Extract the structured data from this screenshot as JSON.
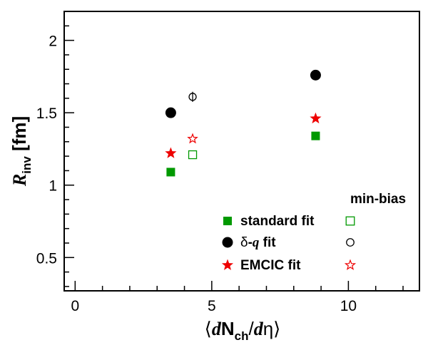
{
  "chart_data": {
    "type": "scatter",
    "title": "",
    "xlabel": {
      "open": "⟨",
      "d1": "d",
      "N": "N",
      "sub": "ch",
      "slash": "/",
      "d2": "d",
      "eta": "η",
      "close": "⟩"
    },
    "ylabel": {
      "R": "R",
      "sub": "inv",
      "unit": " [fm]"
    },
    "xlim": [
      -0.4,
      12.6
    ],
    "ylim": [
      0.27,
      2.2
    ],
    "x_ticks": [
      {
        "v": 0,
        "label": "0"
      },
      {
        "v": 5,
        "label": "5"
      },
      {
        "v": 10,
        "label": "10"
      }
    ],
    "y_ticks": [
      {
        "v": 0.5,
        "label": "0.5"
      },
      {
        "v": 1,
        "label": "1"
      },
      {
        "v": 1.5,
        "label": "1.5"
      },
      {
        "v": 2,
        "label": "2"
      }
    ],
    "grid": false,
    "legend_position": "bottom-right",
    "legend_header": "min-bias",
    "series": [
      {
        "name": "standard fit",
        "symbol": "square",
        "color": "#009900",
        "filled": true,
        "points": [
          {
            "x": 3.5,
            "y": 1.09
          },
          {
            "x": 8.8,
            "y": 1.34
          }
        ]
      },
      {
        "name": "δ-q fit",
        "symbol": "circle",
        "color": "#000000",
        "filled": true,
        "points": [
          {
            "x": 3.5,
            "y": 1.5
          },
          {
            "x": 8.8,
            "y": 1.76
          }
        ]
      },
      {
        "name": "EMCIC fit",
        "symbol": "star",
        "color": "#ee0000",
        "filled": true,
        "points": [
          {
            "x": 3.5,
            "y": 1.22
          },
          {
            "x": 8.8,
            "y": 1.46
          }
        ]
      },
      {
        "name": "standard fit (min-bias)",
        "symbol": "square",
        "color": "#009900",
        "filled": false,
        "points": [
          {
            "x": 4.3,
            "y": 1.21
          }
        ]
      },
      {
        "name": "δ-q fit (min-bias)",
        "symbol": "circle",
        "color": "#000000",
        "filled": false,
        "points": [
          {
            "x": 4.3,
            "y": 1.61,
            "err": 0.02
          }
        ]
      },
      {
        "name": "EMCIC fit (min-bias)",
        "symbol": "star",
        "color": "#ee0000",
        "filled": false,
        "points": [
          {
            "x": 4.3,
            "y": 1.32
          }
        ]
      }
    ],
    "legend": [
      {
        "label": "standard fit",
        "symbol": "square",
        "color": "#009900"
      },
      {
        "label_delta": "δ",
        "label_dash": "-",
        "label_q": "q",
        "label_rest": " fit",
        "symbol": "circle",
        "color": "#000000"
      },
      {
        "label": "EMCIC fit",
        "symbol": "star",
        "color": "#ee0000"
      }
    ]
  }
}
